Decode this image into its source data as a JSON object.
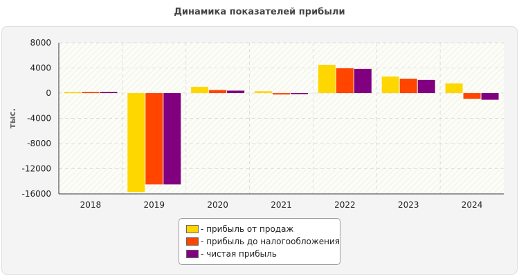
{
  "chart_data": {
    "type": "bar",
    "title": "Динамика показателей прибыли",
    "ylabel": "тыс.",
    "xlabel": "",
    "ylim": [
      -16000,
      8000
    ],
    "yticks": [
      8000,
      4000,
      0,
      -4000,
      -8000,
      -12000,
      -16000
    ],
    "grid": true,
    "legend_position": "bottom",
    "categories": [
      "2018",
      "2019",
      "2020",
      "2021",
      "2022",
      "2023",
      "2024"
    ],
    "series": [
      {
        "name": "- прибыль от продаж",
        "color": "#FFD700",
        "values": [
          200,
          -15700,
          1000,
          300,
          4500,
          2650,
          1550
        ]
      },
      {
        "name": "- прибыль до налогообложения",
        "color": "#FF4500",
        "values": [
          200,
          -14500,
          500,
          -200,
          3950,
          2300,
          -900
        ]
      },
      {
        "name": "- чистая прибыль",
        "color": "#800080",
        "values": [
          200,
          -14500,
          400,
          -150,
          3850,
          2100,
          -1050
        ]
      }
    ]
  }
}
